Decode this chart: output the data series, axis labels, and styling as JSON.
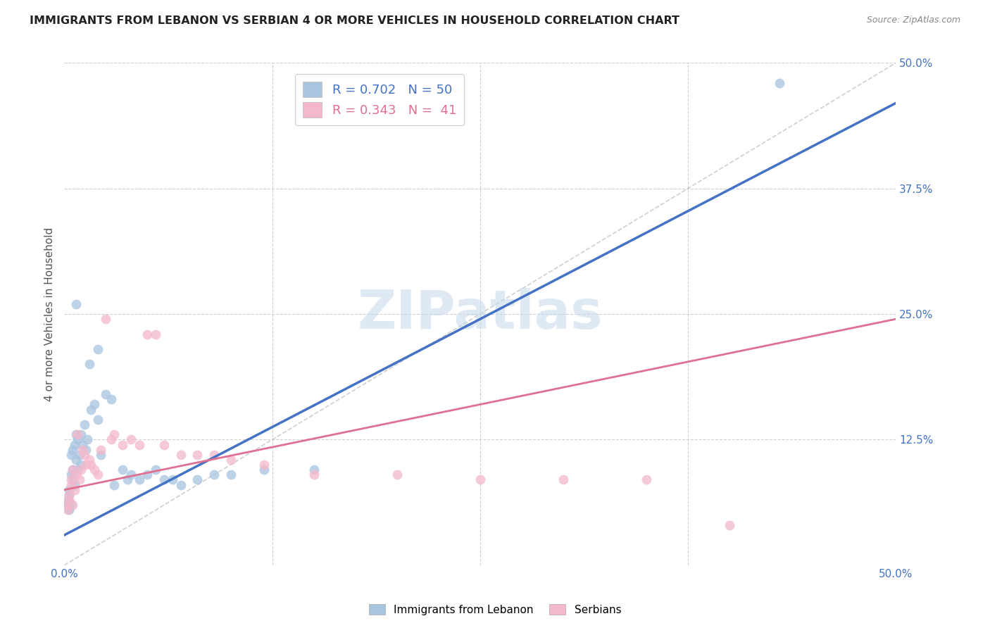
{
  "title": "IMMIGRANTS FROM LEBANON VS SERBIAN 4 OR MORE VEHICLES IN HOUSEHOLD CORRELATION CHART",
  "source": "Source: ZipAtlas.com",
  "ylabel": "4 or more Vehicles in Household",
  "legend_blue_R": "0.702",
  "legend_blue_N": "50",
  "legend_pink_R": "0.343",
  "legend_pink_N": "41",
  "blue_color": "#a8c4e0",
  "blue_line_color": "#4472c4",
  "pink_color": "#f4b8cb",
  "pink_line_color": "#e07090",
  "watermark": "ZIPatlas",
  "blue_scatter_x": [
    0.001,
    0.002,
    0.002,
    0.003,
    0.003,
    0.003,
    0.004,
    0.004,
    0.004,
    0.005,
    0.005,
    0.005,
    0.006,
    0.006,
    0.007,
    0.007,
    0.008,
    0.008,
    0.009,
    0.01,
    0.01,
    0.011,
    0.012,
    0.013,
    0.014,
    0.015,
    0.016,
    0.018,
    0.02,
    0.022,
    0.025,
    0.028,
    0.03,
    0.035,
    0.038,
    0.04,
    0.045,
    0.05,
    0.055,
    0.06,
    0.065,
    0.07,
    0.08,
    0.09,
    0.1,
    0.12,
    0.15,
    0.43,
    0.007,
    0.02
  ],
  "blue_scatter_y": [
    0.06,
    0.058,
    0.065,
    0.055,
    0.07,
    0.075,
    0.06,
    0.09,
    0.11,
    0.085,
    0.095,
    0.115,
    0.08,
    0.12,
    0.105,
    0.13,
    0.095,
    0.125,
    0.11,
    0.1,
    0.13,
    0.12,
    0.14,
    0.115,
    0.125,
    0.2,
    0.155,
    0.16,
    0.145,
    0.11,
    0.17,
    0.165,
    0.08,
    0.095,
    0.085,
    0.09,
    0.085,
    0.09,
    0.095,
    0.085,
    0.085,
    0.08,
    0.085,
    0.09,
    0.09,
    0.095,
    0.095,
    0.48,
    0.26,
    0.215
  ],
  "pink_scatter_x": [
    0.001,
    0.002,
    0.003,
    0.003,
    0.004,
    0.004,
    0.005,
    0.005,
    0.006,
    0.007,
    0.008,
    0.009,
    0.01,
    0.011,
    0.012,
    0.013,
    0.015,
    0.016,
    0.018,
    0.02,
    0.022,
    0.025,
    0.028,
    0.03,
    0.035,
    0.04,
    0.045,
    0.05,
    0.055,
    0.06,
    0.07,
    0.08,
    0.09,
    0.1,
    0.12,
    0.15,
    0.2,
    0.25,
    0.3,
    0.35,
    0.4
  ],
  "pink_scatter_y": [
    0.06,
    0.055,
    0.065,
    0.07,
    0.085,
    0.08,
    0.06,
    0.095,
    0.075,
    0.09,
    0.13,
    0.085,
    0.095,
    0.115,
    0.11,
    0.1,
    0.105,
    0.1,
    0.095,
    0.09,
    0.115,
    0.245,
    0.125,
    0.13,
    0.12,
    0.125,
    0.12,
    0.23,
    0.23,
    0.12,
    0.11,
    0.11,
    0.11,
    0.105,
    0.1,
    0.09,
    0.09,
    0.085,
    0.085,
    0.085,
    0.04
  ]
}
